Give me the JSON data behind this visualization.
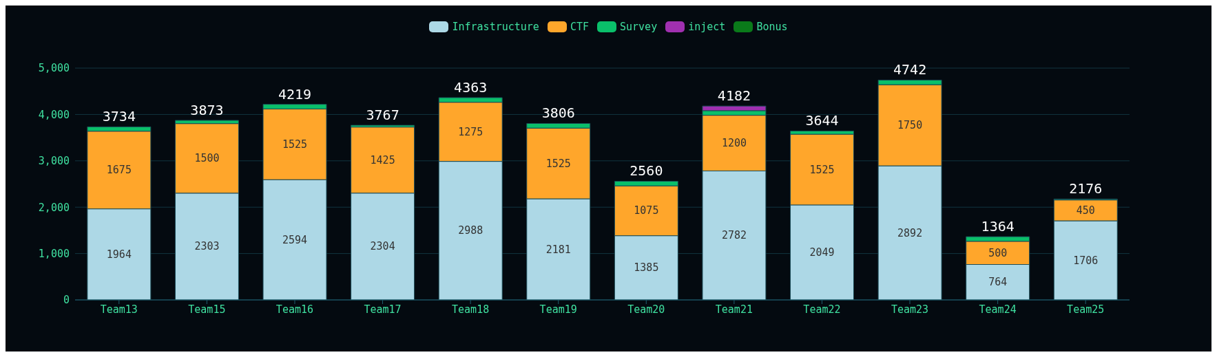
{
  "chart_data": {
    "type": "bar",
    "stacked": true,
    "categories": [
      "Team13",
      "Team15",
      "Team16",
      "Team17",
      "Team18",
      "Team19",
      "Team20",
      "Team21",
      "Team22",
      "Team23",
      "Team24",
      "Team25"
    ],
    "series": [
      {
        "name": "Infrastructure",
        "color": "#add8e6",
        "values": [
          1964,
          2303,
          2594,
          2304,
          2988,
          2181,
          1385,
          2782,
          2049,
          2892,
          764,
          1706
        ],
        "value_labels": [
          "1964",
          "2303",
          "2594",
          "2304",
          "2988",
          "2181",
          "1385",
          "2782",
          "2049",
          "2892",
          "764",
          "1706"
        ]
      },
      {
        "name": "CTF",
        "color": "#ffa62b",
        "values": [
          1675,
          1500,
          1525,
          1425,
          1275,
          1525,
          1075,
          1200,
          1525,
          1750,
          500,
          450
        ],
        "value_labels": [
          "1675",
          "1500",
          "1525",
          "1425",
          "1275",
          "1525",
          "1075",
          "1200",
          "1525",
          "1750",
          "500",
          "450"
        ]
      },
      {
        "name": "Survey",
        "color": "#0abf6a",
        "values": [
          95,
          70,
          100,
          38,
          100,
          100,
          100,
          100,
          70,
          100,
          100,
          20
        ]
      },
      {
        "name": "inject",
        "color": "#a030b0",
        "values": [
          0,
          0,
          0,
          0,
          0,
          0,
          0,
          100,
          0,
          0,
          0,
          0
        ]
      },
      {
        "name": "Bonus",
        "color": "#0a7a1a",
        "values": [
          0,
          0,
          0,
          0,
          0,
          0,
          0,
          0,
          0,
          0,
          0,
          0
        ]
      }
    ],
    "totals": [
      "3734",
      "3873",
      "4219",
      "3767",
      "4363",
      "3806",
      "2560",
      "4182",
      "3644",
      "4742",
      "1364",
      "2176"
    ],
    "ylim": [
      0,
      5000
    ],
    "yticks": [
      {
        "value": 0,
        "label": "0"
      },
      {
        "value": 1000,
        "label": "1,000"
      },
      {
        "value": 2000,
        "label": "2,000"
      },
      {
        "value": 3000,
        "label": "3,000"
      },
      {
        "value": 4000,
        "label": "4,000"
      },
      {
        "value": 5000,
        "label": "5,000"
      }
    ],
    "grid": "y",
    "legend": "top"
  }
}
